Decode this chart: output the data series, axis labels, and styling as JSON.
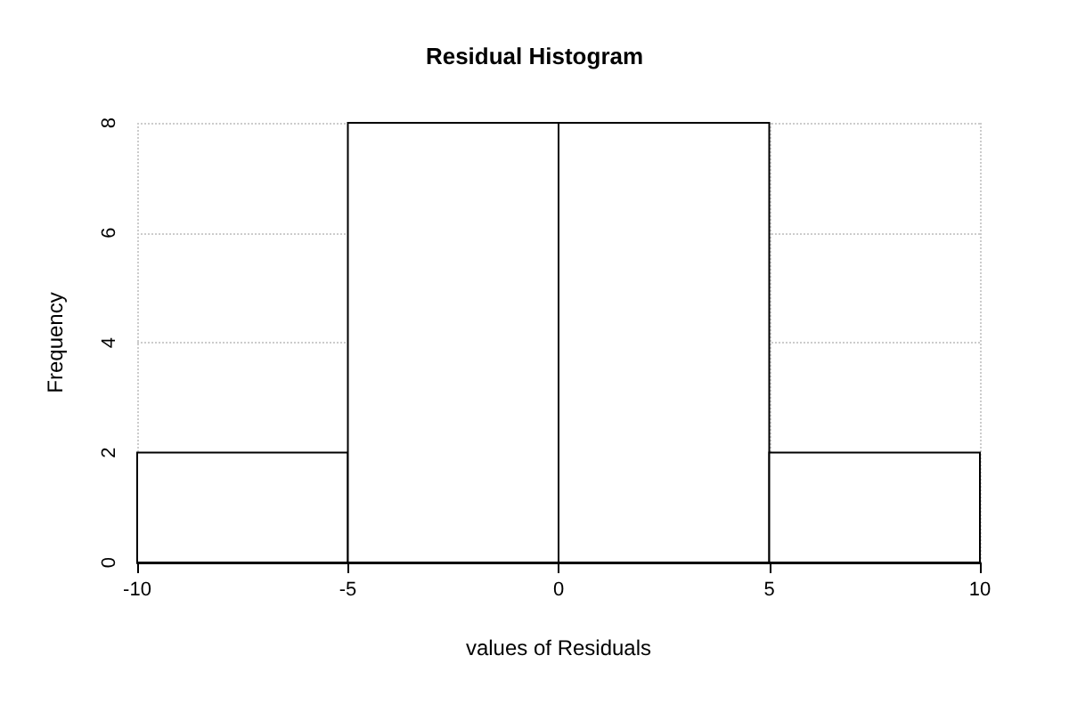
{
  "chart_data": {
    "type": "histogram",
    "title": "Residual Histogram",
    "xlabel": "values of Residuals",
    "ylabel": "Frequency",
    "bins": [
      -10,
      -5,
      0,
      5,
      10
    ],
    "values": [
      2,
      8,
      8,
      2
    ],
    "color": "#ffffff",
    "xlim": [
      -10,
      10
    ],
    "xticks": [
      -10,
      -5,
      0,
      5,
      10
    ],
    "ylim": [
      0,
      8
    ],
    "yticks": [
      0,
      2,
      4,
      6,
      8
    ],
    "grid": true
  }
}
